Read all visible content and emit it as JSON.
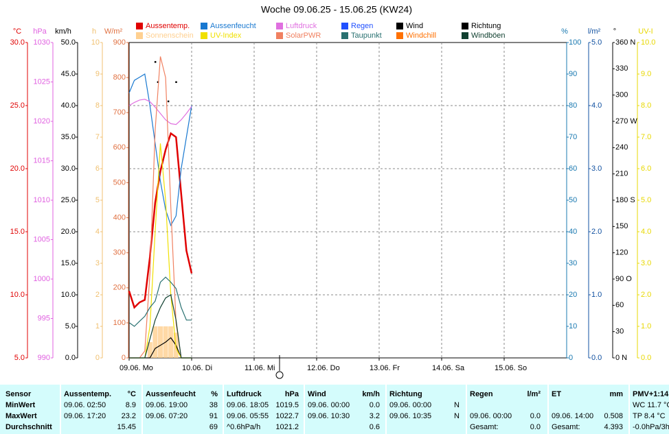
{
  "chart_data": {
    "type": "line",
    "title": "Woche 09.06.25 - 15.06.25 (KW24)",
    "x": [
      0,
      2,
      4,
      6,
      8,
      10,
      12,
      14,
      16,
      18,
      20,
      22,
      24
    ],
    "xlim": [
      0,
      168
    ],
    "xticks": [
      {
        "value": 0,
        "label": "09.06. Mo"
      },
      {
        "value": 24,
        "label": "10.06. Di"
      },
      {
        "value": 48,
        "label": "11.06. Mi"
      },
      {
        "value": 72,
        "label": "12.06. Do"
      },
      {
        "value": 96,
        "label": "13.06. Fr"
      },
      {
        "value": 120,
        "label": "14.06. Sa"
      },
      {
        "value": 144,
        "label": "15.06. So"
      }
    ],
    "grid": true,
    "axes": [
      {
        "unit": "°C",
        "color": "#e00000",
        "lim": [
          5,
          30
        ],
        "ticks": [
          {
            "value": 30,
            "label": "30.0"
          },
          {
            "value": 25,
            "label": "25.0"
          },
          {
            "value": 20,
            "label": "20.0"
          },
          {
            "value": 15,
            "label": "15.0"
          },
          {
            "value": 10,
            "label": "10.0"
          },
          {
            "value": 5,
            "label": "5.0"
          }
        ]
      },
      {
        "unit": "hPa",
        "color": "#e060e0",
        "lim": [
          990,
          1030
        ],
        "ticks": [
          1030,
          1025,
          1020,
          1015,
          1010,
          1005,
          1000,
          995,
          990
        ]
      },
      {
        "unit": "km/h",
        "color": "#000000",
        "lim": [
          0,
          50
        ],
        "ticks": [
          {
            "value": 50,
            "label": "50.0"
          },
          {
            "value": 45,
            "label": "45.0"
          },
          {
            "value": 40,
            "label": "40.0"
          },
          {
            "value": 35,
            "label": "35.0"
          },
          {
            "value": 30,
            "label": "30.0"
          },
          {
            "value": 25,
            "label": "25.0"
          },
          {
            "value": 20,
            "label": "20.0"
          },
          {
            "value": 15,
            "label": "15.0"
          },
          {
            "value": 10,
            "label": "10.0"
          },
          {
            "value": 5,
            "label": "5.0"
          },
          {
            "value": 0,
            "label": "0.0"
          }
        ]
      },
      {
        "unit": "h",
        "color": "#f0c070",
        "lim": [
          0,
          10
        ],
        "ticks": [
          10,
          9,
          8,
          7,
          6,
          5,
          4,
          3,
          2,
          1,
          0
        ]
      },
      {
        "unit": "W/m²",
        "color": "#e07040",
        "lim": [
          0,
          900
        ],
        "ticks": [
          900,
          800,
          700,
          600,
          500,
          400,
          300,
          200,
          100,
          0
        ]
      },
      {
        "unit": "%",
        "color": "#1878b0",
        "lim": [
          0,
          100
        ],
        "ticks": [
          100,
          90,
          80,
          70,
          60,
          50,
          40,
          30,
          20,
          10,
          0
        ]
      },
      {
        "unit": "l/m²",
        "color": "#1050a0",
        "lim": [
          0,
          5
        ],
        "ticks": [
          {
            "value": 5,
            "label": "5.0"
          },
          {
            "value": 4,
            "label": "4.0"
          },
          {
            "value": 3,
            "label": "3.0"
          },
          {
            "value": 2,
            "label": "2.0"
          },
          {
            "value": 1,
            "label": "1.0"
          },
          {
            "value": 0,
            "label": "0.0"
          }
        ]
      },
      {
        "unit": "°",
        "color": "#000000",
        "lim": [
          0,
          360
        ],
        "ticks": [
          {
            "value": 360,
            "label": "360 N"
          },
          330,
          300,
          {
            "value": 270,
            "label": "270 W"
          },
          240,
          210,
          {
            "value": 180,
            "label": "180 S"
          },
          150,
          120,
          {
            "value": 90,
            "label": "90  O"
          },
          60,
          30,
          {
            "value": 0,
            "label": "0  N"
          }
        ]
      },
      {
        "unit": "UV-I",
        "color": "#e8d800",
        "lim": [
          0,
          10
        ],
        "ticks": [
          {
            "value": 10,
            "label": "10.0"
          },
          {
            "value": 9,
            "label": "9.0"
          },
          {
            "value": 8,
            "label": "8.0"
          },
          {
            "value": 7,
            "label": "7.0"
          },
          {
            "value": 6,
            "label": "6.0"
          },
          {
            "value": 5,
            "label": "5.0"
          },
          {
            "value": 4,
            "label": "4.0"
          },
          {
            "value": 3,
            "label": "3.0"
          },
          {
            "value": 2,
            "label": "2.0"
          },
          {
            "value": 1,
            "label": "1.0"
          },
          {
            "value": 0,
            "label": "0.0"
          }
        ]
      }
    ],
    "series": [
      {
        "name": "Aussentemp.",
        "color": "#e00000",
        "axis": 0,
        "type": "line",
        "values": [
          10.3,
          9.0,
          9.4,
          9.6,
          13.0,
          17.3,
          19.8,
          21.5,
          22.8,
          22.5,
          18.0,
          13.5,
          11.7
        ]
      },
      {
        "name": "Aussenfeucht",
        "color": "#1878d0",
        "axis": 5,
        "type": "line",
        "values": [
          84,
          88,
          89,
          90,
          80,
          68,
          56,
          47,
          42,
          45,
          60,
          70,
          80
        ]
      },
      {
        "name": "Luftdruck",
        "color": "#e070e0",
        "axis": 1,
        "type": "line",
        "values": [
          1022.0,
          1022.4,
          1022.7,
          1022.8,
          1022.5,
          1021.8,
          1021.0,
          1020.2,
          1019.7,
          1019.6,
          1020.2,
          1021.0,
          1021.9
        ]
      },
      {
        "name": "Regen",
        "color": "#2050ff",
        "axis": 6,
        "type": "line",
        "values": [
          null,
          null,
          null,
          null,
          null,
          null,
          null,
          null,
          null,
          null,
          null,
          null,
          null
        ]
      },
      {
        "name": "Wind",
        "color": "#000000",
        "axis": 2,
        "type": "line",
        "values": [
          0,
          0,
          0,
          0,
          0,
          1.5,
          2.0,
          2.5,
          3.2,
          2.0,
          0,
          0,
          0
        ]
      },
      {
        "name": "Richtung",
        "color": "#000000",
        "axis": 7,
        "type": "scatter",
        "x": [
          10,
          11,
          15,
          18
        ],
        "values": [
          338,
          315,
          293,
          315
        ]
      },
      {
        "name": "Sonnenschein",
        "color": "#ffd090",
        "axis": 3,
        "type": "bar",
        "values": [
          0,
          0,
          0,
          0,
          0.5,
          1.0,
          1.0,
          1.0,
          1.0,
          0.8,
          0,
          0,
          0
        ]
      },
      {
        "name": "UV-Index",
        "color": "#f0e000",
        "axis": 8,
        "type": "line",
        "values": [
          0,
          0,
          0,
          0,
          1.0,
          4.0,
          6.8,
          5.0,
          2.0,
          0.3,
          0,
          0,
          0
        ]
      },
      {
        "name": "SolarPWR",
        "color": "#f08060",
        "axis": 4,
        "type": "line",
        "values": [
          0,
          0,
          0,
          20,
          240,
          650,
          860,
          800,
          430,
          100,
          0,
          0,
          0
        ]
      },
      {
        "name": "Taupunkt",
        "color": "#287070",
        "axis": 0,
        "type": "line",
        "values": [
          7.8,
          7.5,
          7.9,
          8.3,
          9.0,
          9.5,
          11.0,
          11.4,
          11.0,
          10.5,
          9.0,
          8.0,
          8.0
        ]
      },
      {
        "name": "Windchill",
        "color": "#ff7000",
        "axis": 0,
        "type": "line",
        "values": [
          null,
          null,
          null,
          null,
          null,
          null,
          null,
          null,
          null,
          null,
          null,
          null,
          null
        ]
      },
      {
        "name": "Windböen",
        "color": "#104030",
        "axis": 2,
        "type": "line",
        "values": [
          0,
          0,
          0,
          0,
          3.0,
          6.0,
          8.0,
          9.5,
          10.0,
          6.0,
          0,
          0,
          0
        ]
      }
    ]
  },
  "table": {
    "header": [
      "Sensor",
      "Aussentemp.",
      "°C",
      "Aussenfeucht",
      "%",
      "Luftdruck",
      "hPa",
      "Wind",
      "km/h",
      "Richtung",
      null,
      "Regen",
      "l/m²",
      "ET",
      "mm",
      "PMV+1:14"
    ],
    "rows": [
      [
        "MinWert",
        "09.06.  02:50",
        "8.9",
        "09.06.  19:00",
        "38",
        "09.06.  18:05",
        "1019.5",
        "09.06.  00:00",
        "0.0",
        "09.06.  00:00",
        "N",
        null,
        null,
        null,
        null,
        "WC 11.7 °C"
      ],
      [
        "MaxWert",
        "09.06.  17:20",
        "23.2",
        "09.06.  07:20",
        "91",
        "09.06.  05:55",
        "1022.7",
        "09.06.  10:30",
        "3.2",
        "09.06.  10:35",
        "N",
        "09.06.  00:00",
        "0.0",
        "09.06.  14:00",
        "0.508",
        "TP 8.4 °C"
      ],
      [
        "Durchschnitt",
        null,
        "15.45",
        null,
        "69",
        "^0.6hPa/h",
        "1021.2",
        null,
        "0.6",
        null,
        null,
        "Gesamt:",
        "0.0",
        "Gesamt:",
        "4.393",
        "-0.0hPa/3h"
      ]
    ]
  }
}
